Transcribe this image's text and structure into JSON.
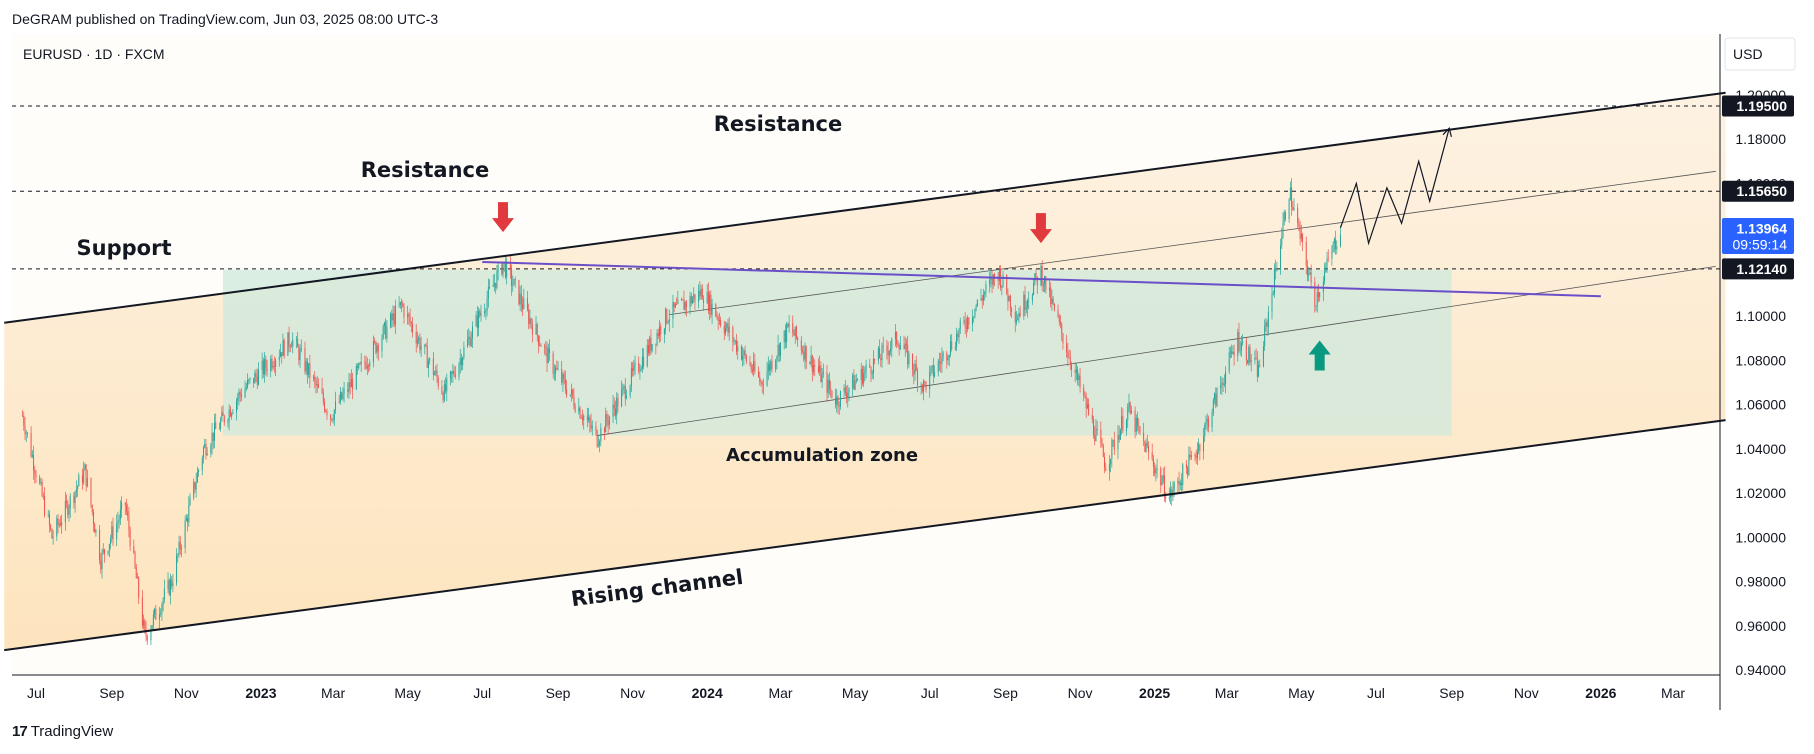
{
  "header": {
    "published": "DeGRAM published on TradingView.com, Jun 03, 2025 08:00 UTC-3"
  },
  "symbol_label": "EURUSD · 1D · FXCM",
  "currency": "USD",
  "footer": {
    "logo_mark": "17",
    "brand": "TradingView"
  },
  "price_tags": {
    "r1": "1.19500",
    "r2": "1.15650",
    "current": "1.13964",
    "countdown": "09:59:14",
    "s1": "1.12140"
  },
  "annotations": {
    "resistance_upper": "Resistance",
    "resistance_lower": "Resistance",
    "support": "Support",
    "accumulation": "Accumulation zone",
    "channel": "Rising channel"
  },
  "colors": {
    "bull": "#26a69a",
    "bear": "#ef5350",
    "arrow_down": "#e03a3e",
    "arrow_up": "#089981",
    "trendline": "#6a4fc9",
    "current_tag": "#2962ff",
    "zone": "#cde8dc",
    "channel_fill": "#fde6c4"
  },
  "chart_data": {
    "type": "candlestick",
    "title": "EURUSD · 1D · FXCM",
    "ylim": [
      0.94,
      1.2
    ],
    "y_ticks": [
      "0.94000",
      "0.96000",
      "0.98000",
      "1.00000",
      "1.02000",
      "1.04000",
      "1.06000",
      "1.08000",
      "1.10000",
      "1.12000",
      "1.14000",
      "1.16000",
      "1.18000",
      "1.20000"
    ],
    "x_ticks": [
      {
        "label": "Jul",
        "date": "2022-07-01"
      },
      {
        "label": "Sep",
        "date": "2022-09-01"
      },
      {
        "label": "Nov",
        "date": "2022-11-01"
      },
      {
        "label": "2023",
        "date": "2023-01-01",
        "bold": true
      },
      {
        "label": "Mar",
        "date": "2023-03-01"
      },
      {
        "label": "May",
        "date": "2023-05-01"
      },
      {
        "label": "Jul",
        "date": "2023-07-01"
      },
      {
        "label": "Sep",
        "date": "2023-09-01"
      },
      {
        "label": "Nov",
        "date": "2023-11-01"
      },
      {
        "label": "2024",
        "date": "2024-01-01",
        "bold": true
      },
      {
        "label": "Mar",
        "date": "2024-03-01"
      },
      {
        "label": "May",
        "date": "2024-05-01"
      },
      {
        "label": "Jul",
        "date": "2024-07-01"
      },
      {
        "label": "Sep",
        "date": "2024-09-01"
      },
      {
        "label": "Nov",
        "date": "2024-11-01"
      },
      {
        "label": "2025",
        "date": "2025-01-01",
        "bold": true
      },
      {
        "label": "Mar",
        "date": "2025-03-01"
      },
      {
        "label": "May",
        "date": "2025-05-01"
      },
      {
        "label": "Jul",
        "date": "2025-07-01"
      },
      {
        "label": "Sep",
        "date": "2025-09-01"
      },
      {
        "label": "Nov",
        "date": "2025-11-01"
      },
      {
        "label": "2026",
        "date": "2026-01-01",
        "bold": true
      },
      {
        "label": "Mar",
        "date": "2026-03-01"
      }
    ],
    "price_path": [
      [
        "2022-06-20",
        1.055
      ],
      [
        "2022-07-14",
        1.0
      ],
      [
        "2022-08-10",
        1.03
      ],
      [
        "2022-08-23",
        0.99
      ],
      [
        "2022-09-12",
        1.015
      ],
      [
        "2022-09-28",
        0.955
      ],
      [
        "2022-10-20",
        0.98
      ],
      [
        "2022-11-15",
        1.04
      ],
      [
        "2022-12-15",
        1.065
      ],
      [
        "2023-01-26",
        1.09
      ],
      [
        "2023-02-27",
        1.055
      ],
      [
        "2023-04-26",
        1.105
      ],
      [
        "2023-05-31",
        1.065
      ],
      [
        "2023-07-18",
        1.124
      ],
      [
        "2023-08-25",
        1.08
      ],
      [
        "2023-10-03",
        1.045
      ],
      [
        "2023-11-29",
        1.1
      ],
      [
        "2023-12-28",
        1.111
      ],
      [
        "2024-02-14",
        1.07
      ],
      [
        "2024-03-08",
        1.095
      ],
      [
        "2024-04-16",
        1.062
      ],
      [
        "2024-06-05",
        1.09
      ],
      [
        "2024-06-26",
        1.068
      ],
      [
        "2024-08-26",
        1.12
      ],
      [
        "2024-09-10",
        1.1
      ],
      [
        "2024-09-30",
        1.12
      ],
      [
        "2024-11-22",
        1.033
      ],
      [
        "2024-12-10",
        1.058
      ],
      [
        "2025-01-13",
        1.018
      ],
      [
        "2025-02-05",
        1.04
      ],
      [
        "2025-03-10",
        1.09
      ],
      [
        "2025-03-27",
        1.075
      ],
      [
        "2025-04-21",
        1.157
      ],
      [
        "2025-05-12",
        1.107
      ],
      [
        "2025-06-02",
        1.14
      ]
    ],
    "projection": [
      [
        "2025-06-02",
        1.14
      ],
      [
        "2025-06-15",
        1.16
      ],
      [
        "2025-06-25",
        1.133
      ],
      [
        "2025-07-10",
        1.158
      ],
      [
        "2025-07-22",
        1.142
      ],
      [
        "2025-08-05",
        1.17
      ],
      [
        "2025-08-14",
        1.152
      ],
      [
        "2025-08-30",
        1.185
      ]
    ],
    "horizontal_levels": [
      1.195,
      1.1565,
      1.1214
    ],
    "current_price": 1.13964,
    "rising_channel": {
      "upper": [
        [
          "2022-06-05",
          1.097
        ],
        [
          "2026-04-13",
          1.201
        ]
      ],
      "lower": [
        [
          "2022-06-05",
          0.949
        ],
        [
          "2026-04-13",
          1.053
        ]
      ]
    },
    "inner_channel": {
      "upper": [
        [
          "2023-12-01",
          1.1007
        ],
        [
          "2026-04-05",
          1.1655
        ]
      ],
      "lower": [
        [
          "2023-10-03",
          1.046
        ],
        [
          "2026-04-05",
          1.1225
        ]
      ]
    },
    "trendline": [
      [
        "2023-07-01",
        1.1245
      ],
      [
        "2026-01-01",
        1.109
      ]
    ],
    "accumulation_zone": {
      "x0": "2022-12-01",
      "x1": "2025-09-01",
      "y0": 1.046,
      "y1": 1.121
    },
    "arrows_down": [
      [
        "2023-07-18",
        1.138
      ],
      [
        "2024-09-30",
        1.133
      ]
    ],
    "arrows_up": [
      [
        "2025-05-16",
        1.089
      ]
    ]
  }
}
